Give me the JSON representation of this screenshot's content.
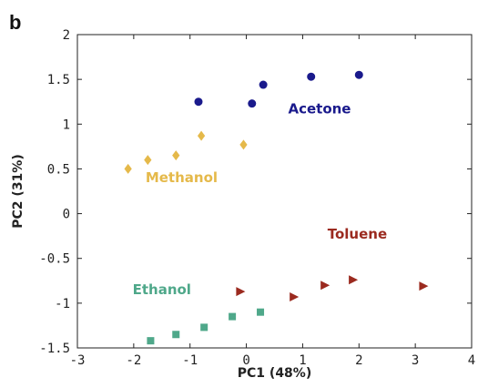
{
  "panel_label": "b",
  "chart_data": {
    "type": "scatter",
    "xlabel": "PC1 (48%)",
    "ylabel": "PC2 (31%)",
    "xlim": [
      -3,
      4
    ],
    "ylim": [
      -1.5,
      2
    ],
    "xticks": [
      -3,
      -2,
      -1,
      0,
      1,
      2,
      3,
      4
    ],
    "yticks": [
      -1.5,
      -1,
      -0.5,
      0,
      0.5,
      1,
      1.5,
      2
    ],
    "xtick_labels": [
      "-3",
      "-2",
      "-1",
      "0",
      "1",
      "2",
      "3",
      "4"
    ],
    "ytick_labels": [
      "-1.5",
      "-1",
      "-0.5",
      "0",
      "0.5",
      "1",
      "1.5",
      "2"
    ],
    "grid": false,
    "series": [
      {
        "name": "Acetone",
        "marker": "circle",
        "color": "#1a1a8c",
        "label_pos": [
          1.3,
          1.12
        ],
        "x": [
          -0.85,
          0.1,
          0.3,
          1.15,
          2.0
        ],
        "y": [
          1.25,
          1.23,
          1.44,
          1.53,
          1.55
        ]
      },
      {
        "name": "Methanol",
        "marker": "diamond",
        "color": "#e5b94a",
        "label_pos": [
          -1.15,
          0.35
        ],
        "x": [
          -2.1,
          -1.75,
          -1.25,
          -0.8,
          -0.05
        ],
        "y": [
          0.5,
          0.6,
          0.65,
          0.87,
          0.77
        ]
      },
      {
        "name": "Toluene",
        "marker": "triangle-right",
        "color": "#9b2a1f",
        "label_pos": [
          1.97,
          -0.28
        ],
        "x": [
          -0.1,
          0.85,
          1.4,
          1.9,
          3.15
        ],
        "y": [
          -0.87,
          -0.93,
          -0.8,
          -0.74,
          -0.81
        ]
      },
      {
        "name": "Ethanol",
        "marker": "square",
        "color": "#4fa88a",
        "label_pos": [
          -1.5,
          -0.9
        ],
        "x": [
          -1.7,
          -1.25,
          -0.75,
          -0.25,
          0.25
        ],
        "y": [
          -1.42,
          -1.35,
          -1.27,
          -1.15,
          -1.1
        ]
      }
    ]
  }
}
